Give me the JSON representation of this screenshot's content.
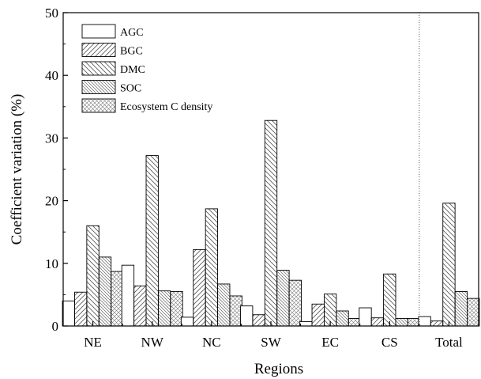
{
  "chart_data": {
    "type": "bar",
    "xlabel": "Regions",
    "ylabel": "Coefficient variation (%)",
    "ylim": [
      0,
      50
    ],
    "yticks": [
      0,
      10,
      20,
      30,
      40,
      50
    ],
    "categories": [
      "NE",
      "NW",
      "NC",
      "SW",
      "EC",
      "CS",
      "Total"
    ],
    "grid": false,
    "legend_position": "top-left",
    "separator_before_category": "Total",
    "series": [
      {
        "name": "AGC",
        "pattern": "none",
        "values": [
          4.0,
          9.7,
          1.4,
          3.2,
          0.7,
          2.9,
          1.5
        ]
      },
      {
        "name": "BGC",
        "pattern": "forward-diagonal",
        "values": [
          5.4,
          6.4,
          12.2,
          1.8,
          3.5,
          1.3,
          0.8
        ]
      },
      {
        "name": "DMC",
        "pattern": "back-diagonal",
        "values": [
          16.0,
          27.2,
          18.7,
          32.8,
          5.1,
          8.3,
          19.6
        ]
      },
      {
        "name": "SOC",
        "pattern": "dense-back-diagonal",
        "values": [
          11.0,
          5.6,
          6.7,
          8.9,
          2.4,
          1.2,
          5.5
        ]
      },
      {
        "name": "Ecosystem C density",
        "pattern": "crosshatch",
        "values": [
          8.7,
          5.5,
          4.8,
          7.3,
          1.2,
          1.2,
          4.4
        ]
      }
    ]
  }
}
